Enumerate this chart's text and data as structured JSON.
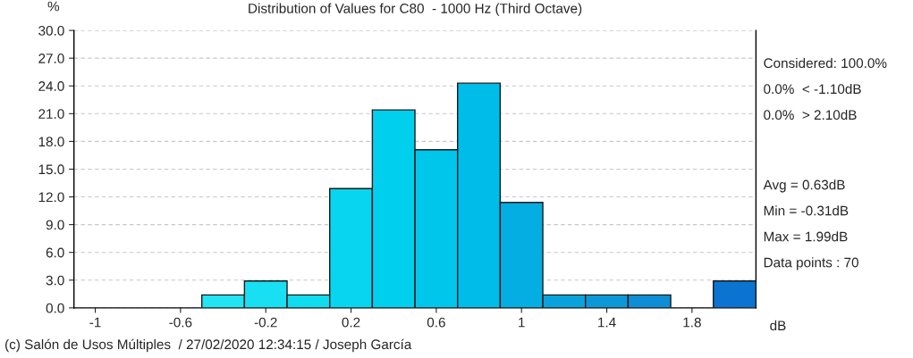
{
  "chart_data": {
    "type": "histogram",
    "title": "Distribution of Values for C80  - 1000 Hz (Third Octave)",
    "xlabel": "dB",
    "ylabel": "%",
    "bins": [
      -1.1,
      -0.9,
      -0.7,
      -0.5,
      -0.3,
      -0.1,
      0.1,
      0.3,
      0.5,
      0.7,
      0.9,
      1.1,
      1.3,
      1.5,
      1.7,
      1.9,
      2.1
    ],
    "values": [
      0,
      0,
      0,
      1.4,
      2.9,
      1.4,
      12.9,
      21.4,
      17.1,
      24.3,
      11.4,
      1.4,
      1.4,
      1.4,
      0,
      2.9
    ],
    "colors": [
      "#22e4f2",
      "#22e4f2",
      "#22e4f2",
      "#22e4f2",
      "#18e0f2",
      "#10dcf0",
      "#08d6f0",
      "#00cfee",
      "#00c6ec",
      "#00bce8",
      "#04aee2",
      "#0aa2dc",
      "#0c98d8",
      "#0e8ed6",
      "#0e84d4",
      "#0a74d0"
    ],
    "xlim": [
      -1.1,
      2.1
    ],
    "xticks": [
      -1,
      -0.6,
      -0.2,
      0.2,
      0.6,
      1,
      1.4,
      1.8
    ],
    "ylim": [
      0,
      30
    ],
    "yticks": [
      {
        "value": 0,
        "label": "0.0"
      },
      {
        "value": 3,
        "label": "3.0"
      },
      {
        "value": 6,
        "label": "6.0"
      },
      {
        "value": 9,
        "label": "9.0"
      },
      {
        "value": 12,
        "label": "12.0"
      },
      {
        "value": 15,
        "label": "15.0"
      },
      {
        "value": 18,
        "label": "18.0"
      },
      {
        "value": 21,
        "label": "21.0"
      },
      {
        "value": 24,
        "label": "24.0"
      },
      {
        "value": 27,
        "label": "27.0"
      },
      {
        "value": 30,
        "label": "30.0"
      }
    ],
    "grid": "y",
    "annotations": [
      "Considered: 100.0%",
      "0.0%  < -1.10dB",
      "0.0%  > 2.10dB",
      "Avg = 0.63dB",
      "Min = -0.31dB",
      "Max = 1.99dB",
      "Data points : 70",
      "(c) Salón de Usos Múltiples  / 27/02/2020 12:34:15 / Joseph García"
    ]
  }
}
